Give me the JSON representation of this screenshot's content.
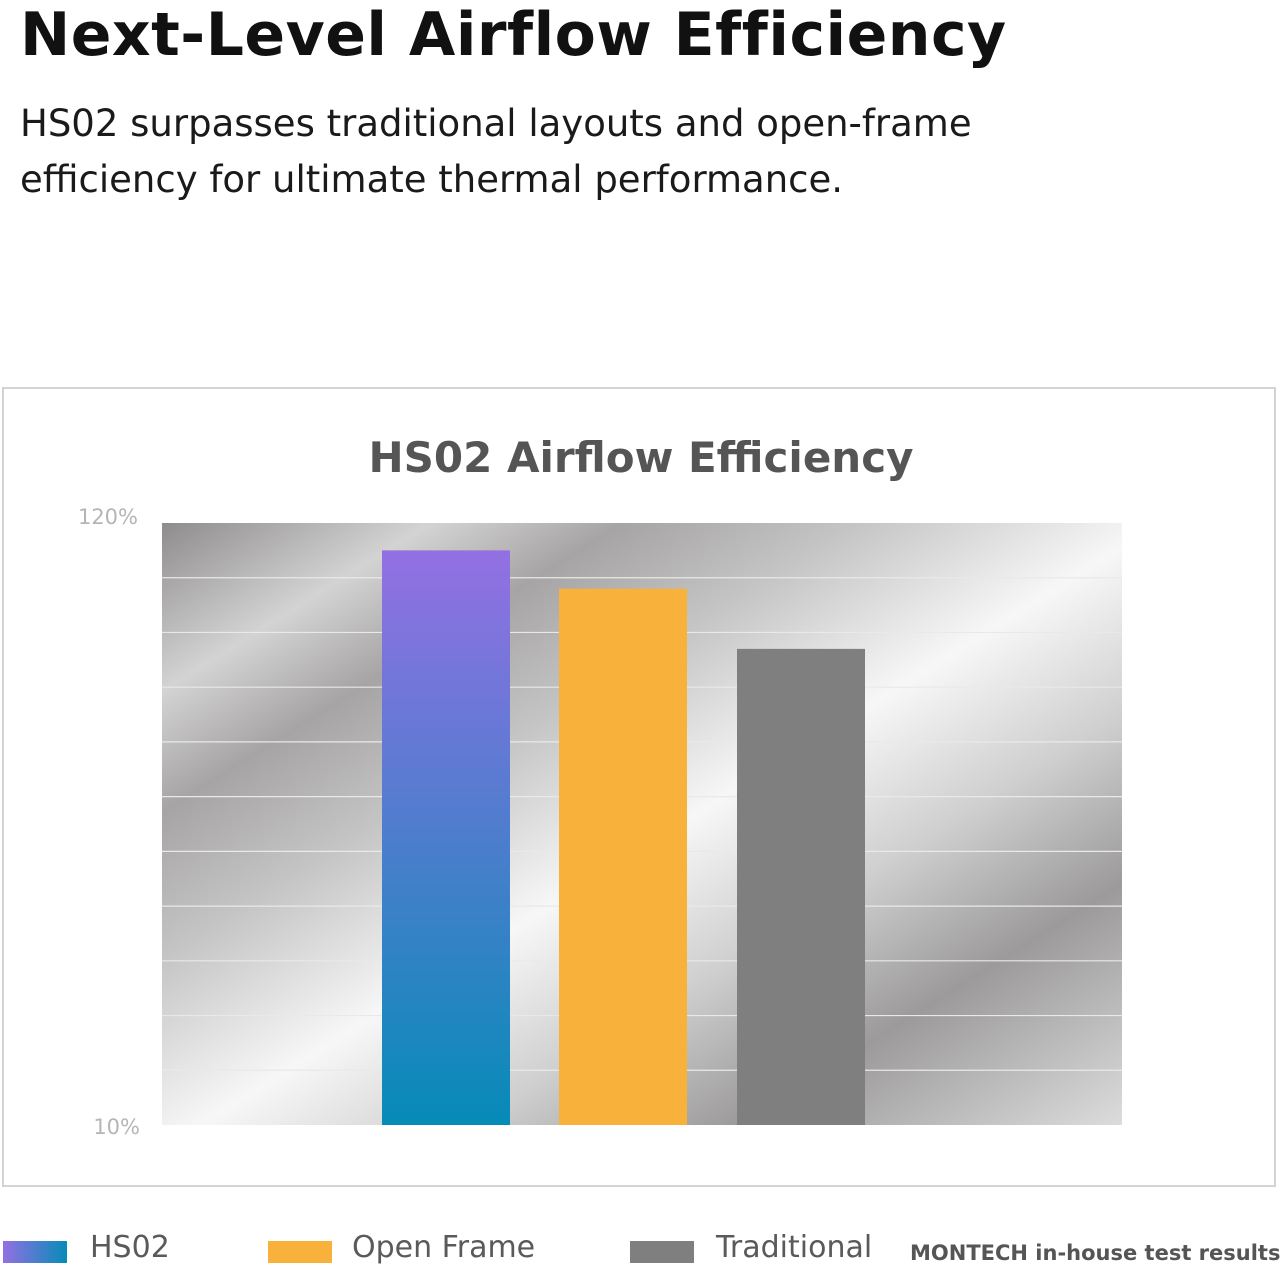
{
  "header": {
    "title": "Next-Level Airflow Efficiency",
    "subtitle": "HS02 surpasses traditional layouts and open-frame efficiency for ultimate thermal performance."
  },
  "colors": {
    "hs02_top": "#9370e3",
    "hs02_bottom": "#068bb7",
    "open_frame": "#f8b13b",
    "traditional": "#7f7f7f",
    "title_text": "#555555",
    "axis_text": "#b5b5b5"
  },
  "chart_data": {
    "type": "bar",
    "title": "HS02 Airflow Efficiency",
    "categories": [
      "HS02",
      "Open Frame",
      "Traditional"
    ],
    "values": [
      115,
      108,
      97
    ],
    "ylim": [
      10,
      120
    ],
    "ytick_labels": [
      "120%",
      "10%"
    ],
    "grid": true,
    "legend_position": "bottom",
    "note": "MONTECH in-house test results"
  },
  "legend": {
    "items": [
      {
        "label": "HS02"
      },
      {
        "label": "Open Frame"
      },
      {
        "label": "Traditional"
      }
    ]
  }
}
